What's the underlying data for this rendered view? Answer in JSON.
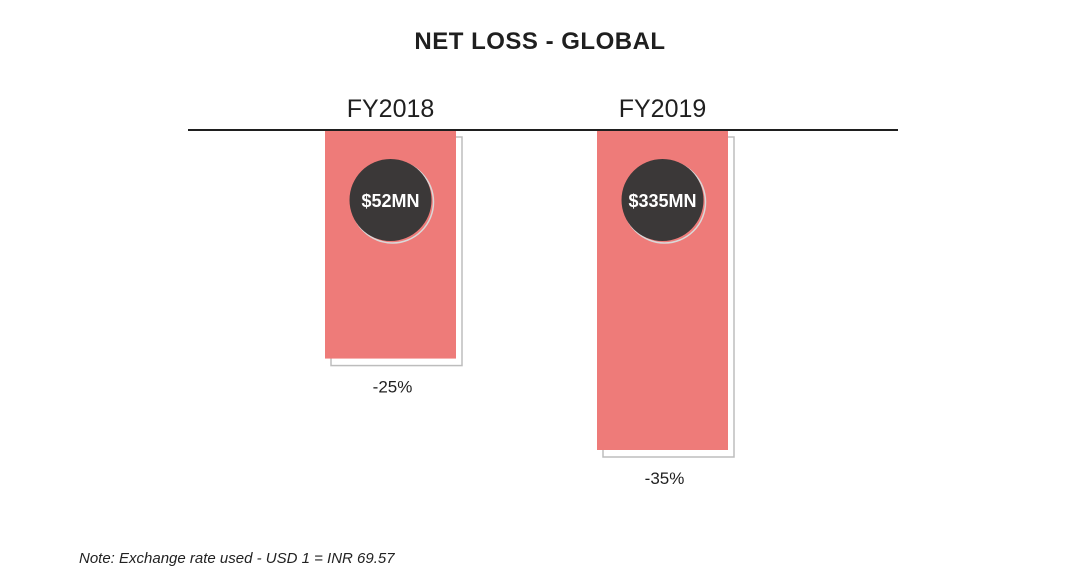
{
  "chart_data": {
    "type": "bar",
    "title": "NET LOSS - GLOBAL",
    "categories": [
      "FY2018",
      "FY2019"
    ],
    "values": [
      52,
      335
    ],
    "value_labels": [
      "$52MN",
      "$335MN"
    ],
    "percent_labels": [
      "-25%",
      "-35%"
    ],
    "percent_values": [
      -25,
      -35
    ],
    "xlabel": "",
    "ylabel": "",
    "grid": false,
    "legend": "none",
    "colors": {
      "bar": "#ee7b79",
      "badge": "#3b3838",
      "badge_text": "#ffffff",
      "axis": "#1f1f1f"
    }
  },
  "note": "Note: Exchange rate used - USD 1 = INR 69.57"
}
